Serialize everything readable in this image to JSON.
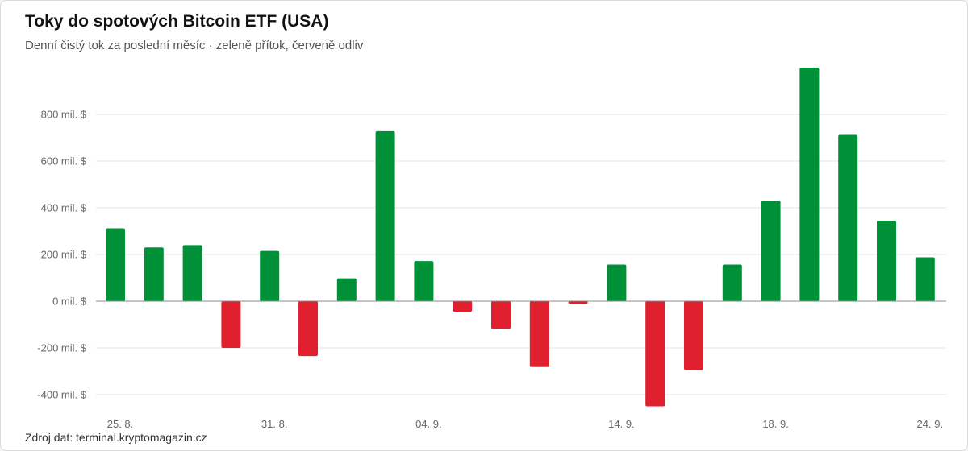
{
  "header": {
    "title": "Toky do spotových Bitcoin ETF (USA)",
    "subtitle": "Denní čistý tok za poslední měsíc · zeleně přítok, červeně odliv"
  },
  "footer": {
    "source": "Zdroj dat: terminal.kryptomagazin.cz"
  },
  "colors": {
    "inflow": "#009038",
    "outflow": "#e0202e",
    "grid": "#e6e6e6",
    "zero_line": "#888888"
  },
  "chart_data": {
    "type": "bar",
    "title": "Toky do spotových Bitcoin ETF (USA)",
    "subtitle": "Denní čistý tok za poslední měsíc · zeleně přítok, červeně odliv",
    "y_unit": "mil. $",
    "ylim": [
      -450,
      1000
    ],
    "y_ticks": [
      {
        "value": 800,
        "label": "800 mil. $"
      },
      {
        "value": 600,
        "label": "600 mil. $"
      },
      {
        "value": 400,
        "label": "400 mil. $"
      },
      {
        "value": 200,
        "label": "200 mil. $"
      },
      {
        "value": 0,
        "label": "0 mil. $"
      },
      {
        "value": -200,
        "label": "-200 mil. $"
      },
      {
        "value": -400,
        "label": "-400 mil. $"
      }
    ],
    "values": [
      312,
      230,
      240,
      -200,
      215,
      -235,
      98,
      728,
      172,
      -45,
      -118,
      -282,
      -12,
      157,
      -450,
      -295,
      157,
      430,
      1000,
      712,
      345,
      188
    ],
    "x_labels": [
      {
        "index": 0,
        "label": "25. 8."
      },
      {
        "index": 4,
        "label": "31. 8."
      },
      {
        "index": 8,
        "label": "04. 9."
      },
      {
        "index": 13,
        "label": "14. 9."
      },
      {
        "index": 17,
        "label": "18. 9."
      },
      {
        "index": 21,
        "label": "24. 9."
      }
    ],
    "grid": true,
    "legend": "none"
  }
}
